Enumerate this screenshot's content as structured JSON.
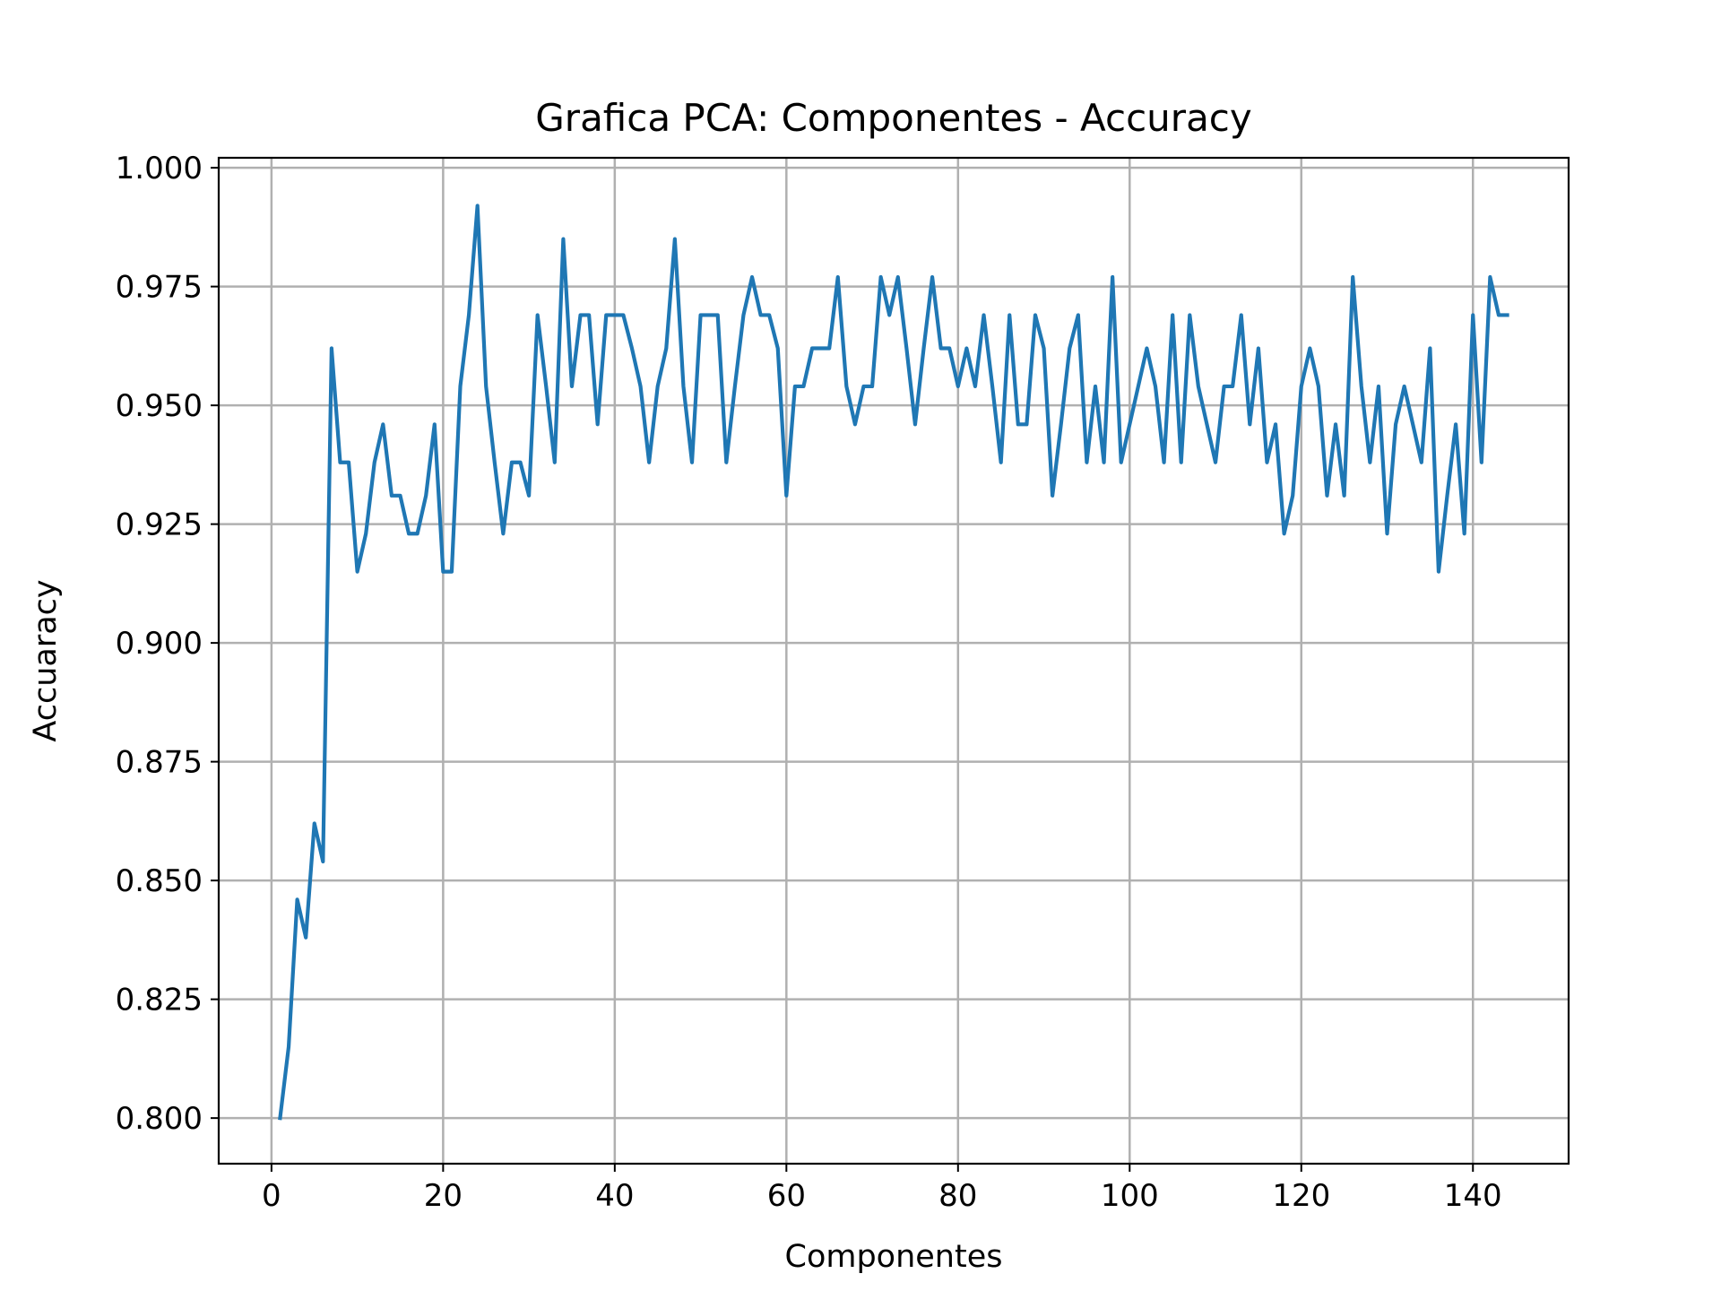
{
  "chart_data": {
    "type": "line",
    "title": "Grafica PCA: Componentes - Accuracy",
    "xlabel": "Componentes",
    "ylabel": "Accuaracy",
    "xlim": [
      -6.15,
      151.15
    ],
    "ylim": [
      0.7904,
      1.0021
    ],
    "xticks": [
      0,
      20,
      40,
      60,
      80,
      100,
      120,
      140
    ],
    "yticks": [
      0.8,
      0.825,
      0.85,
      0.875,
      0.9,
      0.925,
      0.95,
      0.975,
      1.0
    ],
    "yticklabels": [
      "0.800",
      "0.825",
      "0.850",
      "0.875",
      "0.900",
      "0.925",
      "0.950",
      "0.975",
      "1.000"
    ],
    "grid": true,
    "line_color": "#1f77b4",
    "series": [
      {
        "x": [
          1,
          2,
          3,
          4,
          5,
          6,
          7,
          8,
          9,
          10,
          11,
          12,
          13,
          14,
          15,
          16,
          17,
          18,
          19,
          20,
          21,
          22,
          23,
          24,
          25,
          26,
          27,
          28,
          29,
          30,
          31,
          32,
          33,
          34,
          35,
          36,
          37,
          38,
          39,
          40,
          41,
          42,
          43,
          44,
          45,
          46,
          47,
          48,
          49,
          50,
          51,
          52,
          53,
          54,
          55,
          56,
          57,
          58,
          59,
          60,
          61,
          62,
          63,
          64,
          65,
          66,
          67,
          68,
          69,
          70,
          71,
          72,
          73,
          74,
          75,
          76,
          77,
          78,
          79,
          80,
          81,
          82,
          83,
          84,
          85,
          86,
          87,
          88,
          89,
          90,
          91,
          92,
          93,
          94,
          95,
          96,
          97,
          98,
          99,
          100,
          101,
          102,
          103,
          104,
          105,
          106,
          107,
          108,
          109,
          110,
          111,
          112,
          113,
          114,
          115,
          116,
          117,
          118,
          119,
          120,
          121,
          122,
          123,
          124,
          125,
          126,
          127,
          128,
          129,
          130,
          131,
          132,
          133,
          134,
          135,
          136,
          137,
          138,
          139,
          140,
          141,
          142,
          143,
          144
        ],
        "y": [
          0.8,
          0.815,
          0.846,
          0.838,
          0.862,
          0.854,
          0.962,
          0.938,
          0.938,
          0.915,
          0.923,
          0.938,
          0.946,
          0.931,
          0.931,
          0.923,
          0.923,
          0.931,
          0.946,
          0.915,
          0.915,
          0.954,
          0.969,
          0.992,
          0.954,
          0.938,
          0.923,
          0.938,
          0.938,
          0.931,
          0.969,
          0.954,
          0.938,
          0.985,
          0.954,
          0.969,
          0.969,
          0.946,
          0.969,
          0.969,
          0.969,
          0.962,
          0.954,
          0.938,
          0.954,
          0.962,
          0.985,
          0.954,
          0.938,
          0.969,
          0.969,
          0.969,
          0.938,
          0.954,
          0.969,
          0.977,
          0.969,
          0.969,
          0.962,
          0.931,
          0.954,
          0.954,
          0.962,
          0.962,
          0.962,
          0.977,
          0.954,
          0.946,
          0.954,
          0.954,
          0.977,
          0.969,
          0.977,
          0.962,
          0.946,
          0.962,
          0.977,
          0.962,
          0.962,
          0.954,
          0.962,
          0.954,
          0.969,
          0.954,
          0.938,
          0.969,
          0.946,
          0.946,
          0.969,
          0.962,
          0.931,
          0.946,
          0.962,
          0.969,
          0.938,
          0.954,
          0.938,
          0.977,
          0.938,
          0.946,
          0.954,
          0.962,
          0.954,
          0.938,
          0.969,
          0.938,
          0.969,
          0.954,
          0.946,
          0.938,
          0.954,
          0.954,
          0.969,
          0.946,
          0.962,
          0.938,
          0.946,
          0.923,
          0.931,
          0.954,
          0.962,
          0.954,
          0.931,
          0.946,
          0.931,
          0.977,
          0.954,
          0.938,
          0.954,
          0.923,
          0.946,
          0.954,
          0.946,
          0.938,
          0.962,
          0.915,
          0.931,
          0.946,
          0.923,
          0.969,
          0.938,
          0.977,
          0.969,
          0.969
        ]
      }
    ]
  }
}
